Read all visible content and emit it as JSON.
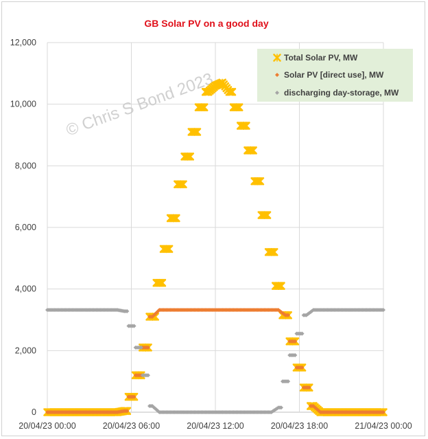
{
  "chart_data": {
    "type": "scatter",
    "title": "GB Solar PV on a good day",
    "watermark": "© Chris S Bond  2023",
    "xlabel": "",
    "ylabel": "",
    "x_ticks": [
      "20/04/23 00:00",
      "20/04/23 06:00",
      "20/04/23 12:00",
      "20/04/23 18:00",
      "21/04/23 00:00"
    ],
    "x_range_hours": [
      0,
      24
    ],
    "ylim": [
      0,
      12000
    ],
    "y_ticks": [
      "0",
      "2,000",
      "4,000",
      "6,000",
      "8,000",
      "10,000",
      "12,000"
    ],
    "grid": true,
    "legend_placement": "top-right",
    "series": [
      {
        "name": "Total Solar PV, MW",
        "color": "#ffc000",
        "marker": "star",
        "x": [
          0,
          0.5,
          1,
          1.5,
          2,
          2.5,
          3,
          3.5,
          4,
          4.5,
          5,
          5.5,
          6,
          6.5,
          7,
          7.5,
          8,
          8.5,
          9,
          9.5,
          10,
          10.5,
          11,
          11.5,
          12,
          12.5,
          13,
          13.5,
          14,
          14.5,
          15,
          15.5,
          16,
          16.5,
          17,
          17.5,
          18,
          18.5,
          19,
          19.5,
          20,
          20.5,
          21,
          21.5,
          22,
          22.5,
          23,
          23.5,
          24
        ],
        "values": [
          0,
          0,
          0,
          0,
          0,
          0,
          0,
          0,
          0,
          0,
          0,
          40,
          500,
          1200,
          2100,
          3100,
          4200,
          5300,
          6300,
          7400,
          8300,
          9100,
          9900,
          10400,
          10600,
          10700,
          10400,
          9900,
          9300,
          8500,
          7500,
          6400,
          5200,
          4100,
          3150,
          2300,
          1450,
          800,
          200,
          0,
          0,
          0,
          0,
          0,
          0,
          0,
          0,
          0,
          0
        ]
      },
      {
        "name": "Solar PV [direct use], MW",
        "color": "#ed7d31",
        "marker": "diamond",
        "x": [
          0,
          0.5,
          1,
          1.5,
          2,
          2.5,
          3,
          3.5,
          4,
          4.5,
          5,
          5.5,
          6,
          6.5,
          7,
          7.5,
          8,
          8.5,
          9,
          9.5,
          10,
          10.5,
          11,
          11.5,
          12,
          12.5,
          13,
          13.5,
          14,
          14.5,
          15,
          15.5,
          16,
          16.5,
          17,
          17.5,
          18,
          18.5,
          19,
          19.5,
          20,
          20.5,
          21,
          21.5,
          22,
          22.5,
          23,
          23.5,
          24
        ],
        "values": [
          0,
          0,
          0,
          0,
          0,
          0,
          0,
          0,
          0,
          0,
          0,
          40,
          500,
          1200,
          2100,
          3100,
          3320,
          3320,
          3320,
          3320,
          3320,
          3320,
          3320,
          3320,
          3320,
          3320,
          3320,
          3320,
          3320,
          3320,
          3320,
          3320,
          3320,
          3320,
          3150,
          2300,
          1450,
          800,
          200,
          0,
          0,
          0,
          0,
          0,
          0,
          0,
          0,
          0,
          0
        ]
      },
      {
        "name": "discharging day-storage, MW",
        "color": "#a5a5a5",
        "marker": "diamond",
        "x": [
          0,
          0.5,
          1,
          1.5,
          2,
          2.5,
          3,
          3.5,
          4,
          4.5,
          5,
          5.5,
          6,
          6.5,
          7,
          7.5,
          8,
          8.5,
          9,
          9.5,
          10,
          10.5,
          11,
          11.5,
          12,
          12.5,
          13,
          13.5,
          14,
          14.5,
          15,
          15.5,
          16,
          16.5,
          17,
          17.5,
          18,
          18.5,
          19,
          19.5,
          20,
          20.5,
          21,
          21.5,
          22,
          22.5,
          23,
          23.5,
          24
        ],
        "values": [
          3320,
          3320,
          3320,
          3320,
          3320,
          3320,
          3320,
          3320,
          3320,
          3320,
          3320,
          3280,
          2800,
          2100,
          1200,
          200,
          0,
          0,
          0,
          0,
          0,
          0,
          0,
          0,
          0,
          0,
          0,
          0,
          0,
          0,
          0,
          0,
          0,
          150,
          1000,
          1850,
          2550,
          3150,
          3320,
          3320,
          3320,
          3320,
          3320,
          3320,
          3320,
          3320,
          3320,
          3320,
          3320
        ]
      }
    ]
  }
}
